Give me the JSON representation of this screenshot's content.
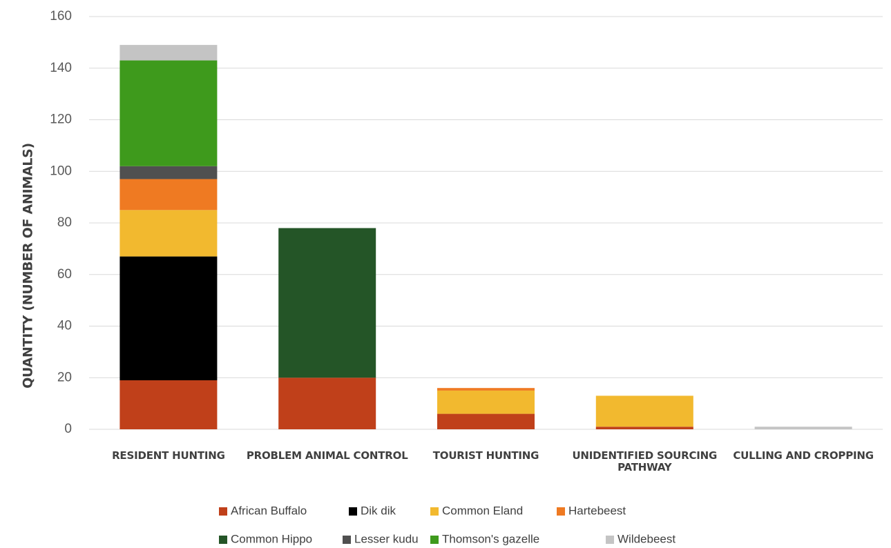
{
  "chart_data": {
    "type": "bar",
    "stacked": true,
    "title": "",
    "xlabel": "",
    "ylabel": "QUANTITY (NUMBER OF ANIMALS)",
    "ylim": [
      0,
      160
    ],
    "yticks": [
      0,
      20,
      40,
      60,
      80,
      100,
      120,
      140,
      160
    ],
    "grid": true,
    "legend_position": "bottom",
    "categories": [
      [
        "RESIDENT HUNTING"
      ],
      [
        "PROBLEM ANIMAL CONTROL"
      ],
      [
        "TOURIST HUNTING"
      ],
      [
        "UNIDENTIFIED SOURCING",
        "PATHWAY"
      ],
      [
        "CULLING AND CROPPING"
      ]
    ],
    "series": [
      {
        "name": "African Buffalo",
        "color": "#c0401a",
        "values": [
          19,
          20,
          6,
          1,
          0
        ]
      },
      {
        "name": "Dik dik",
        "color": "#000000",
        "values": [
          48,
          0,
          0,
          0,
          0
        ]
      },
      {
        "name": "Common Eland",
        "color": "#f2b92f",
        "values": [
          18,
          0,
          9,
          12,
          0
        ]
      },
      {
        "name": "Hartebeest",
        "color": "#ef7a22",
        "values": [
          12,
          0,
          1,
          0,
          0
        ]
      },
      {
        "name": "Common Hippo",
        "color": "#245527",
        "values": [
          0,
          58,
          0,
          0,
          0
        ]
      },
      {
        "name": "Lesser kudu",
        "color": "#505050",
        "values": [
          5,
          0,
          0,
          0,
          0
        ]
      },
      {
        "name": "Thomson's gazelle",
        "color": "#3e9a1c",
        "values": [
          41,
          0,
          0,
          0,
          0
        ]
      },
      {
        "name": "Wildebeest",
        "color": "#c4c4c4",
        "values": [
          6,
          0,
          0,
          0,
          1
        ]
      }
    ]
  }
}
